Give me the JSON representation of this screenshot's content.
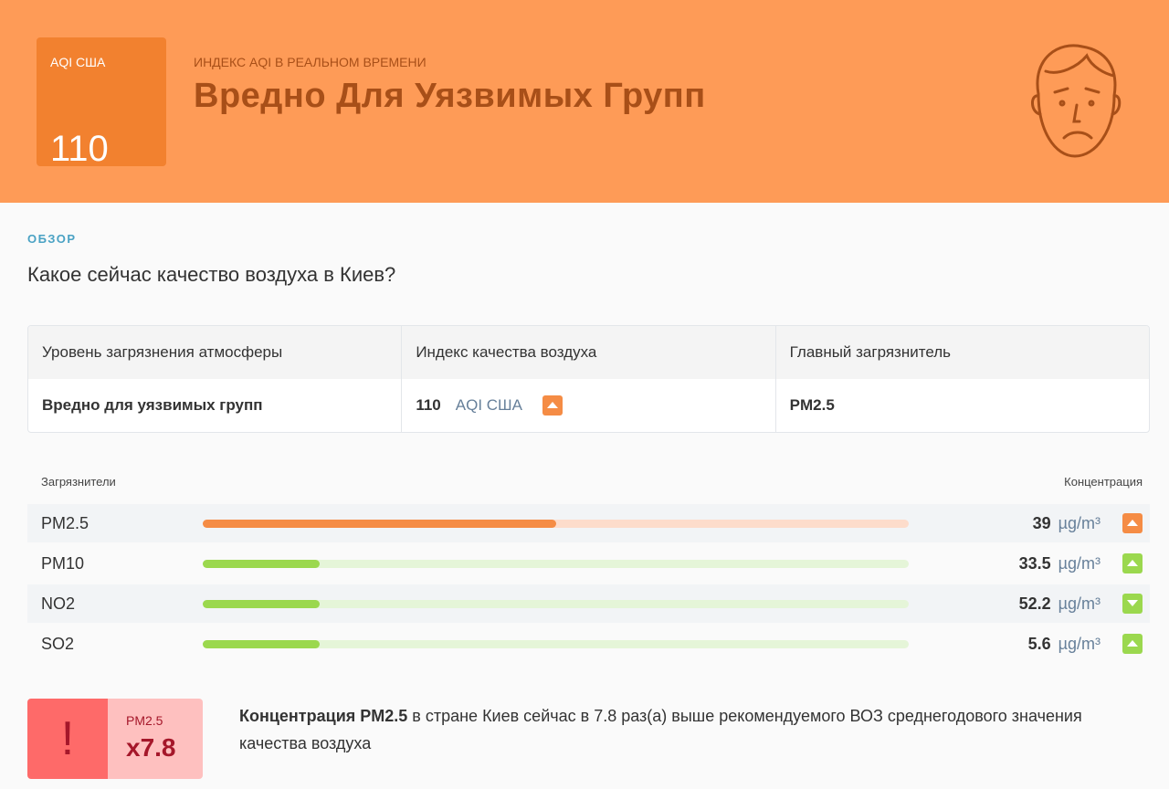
{
  "header": {
    "badge_label": "AQI США",
    "aqi_value": "110",
    "subtitle": "ИНДЕКС AQI В РЕАЛЬНОМ ВРЕМЕНИ",
    "title": "Вредно Для Уязвимых Групп",
    "color": "#fe9b57",
    "icon": "sad-face-icon"
  },
  "overview": {
    "section_label": "ОБЗОР",
    "question": "Какое сейчас качество воздуха в Киев?"
  },
  "summary_table": {
    "headers": [
      "Уровень загрязнения атмосферы",
      "Индекс качества воздуха",
      "Главный загрязнитель"
    ],
    "level": "Вредно для уязвимых групп",
    "aqi": "110",
    "aqi_unit": "AQI США",
    "aqi_trend": "up",
    "main_pollutant": "PM2.5"
  },
  "pollutants": {
    "header_left": "Загрязнители",
    "header_right": "Концентрация",
    "unit": "µg/m³",
    "items": [
      {
        "name": "PM2.5",
        "value": "39",
        "level_percent": 50,
        "color": "#f58c45",
        "track": "#fddccb",
        "trend": "up"
      },
      {
        "name": "PM10",
        "value": "33.5",
        "level_percent": 16.5,
        "color": "#9bd84e",
        "track": "#e5f5d8",
        "trend": "up"
      },
      {
        "name": "NO2",
        "value": "52.2",
        "level_percent": 16.5,
        "color": "#9bd84e",
        "track": "#e5f5d8",
        "trend": "down"
      },
      {
        "name": "SO2",
        "value": "5.6",
        "level_percent": 16.5,
        "color": "#9bd84e",
        "track": "#e5f5d8",
        "trend": "up"
      }
    ]
  },
  "who": {
    "icon": "!",
    "pollutant": "PM2.5",
    "multiplier": "x7.8",
    "bold": "Концентрация PM2.5",
    "text": " в стране Киев сейчас в 7.8 раз(а) выше рекомендуемого ВОЗ среднегодового значения качества воздуха"
  }
}
